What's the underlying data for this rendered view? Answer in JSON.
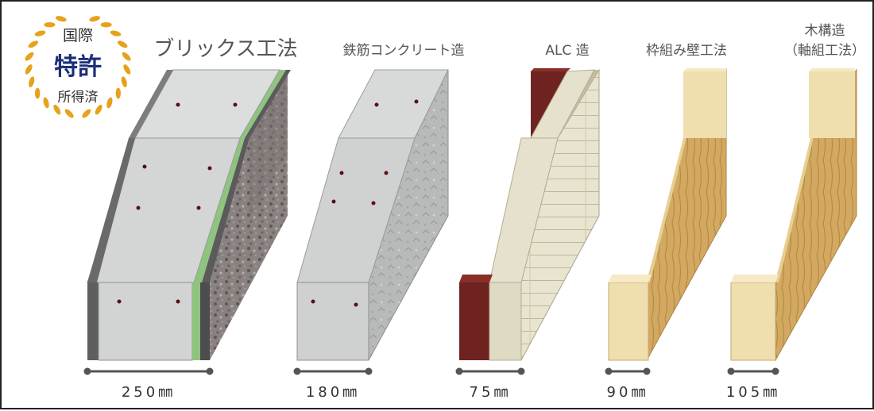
{
  "badge": {
    "line1": "国際",
    "line2": "特許",
    "line3": "所得済"
  },
  "walls": [
    {
      "title": "ブリックス工法",
      "thickness": "250㎜"
    },
    {
      "title": "鉄筋コンクリート造",
      "thickness": "180㎜"
    },
    {
      "title": "ALC 造",
      "thickness": "75㎜"
    },
    {
      "title": "枠組み壁工法",
      "thickness": "90㎜"
    },
    {
      "title": "木構造",
      "subtitle": "（軸組工法）",
      "thickness": "105㎜"
    }
  ],
  "colors": {
    "concrete": "#d4d6d6",
    "granite": "#8a8280",
    "green_layer": "#8fc47f",
    "dark_layer": "#4d4d4d",
    "alc_panel": "#e6e1cd",
    "alc_red": "#6e2320",
    "wood": "#d4ab62",
    "wood_light": "#f0dfae",
    "gold": "#e7a21c",
    "badge_text": "#333333",
    "badge_accent": "#1c2f78",
    "dimension_line": "#555555"
  }
}
